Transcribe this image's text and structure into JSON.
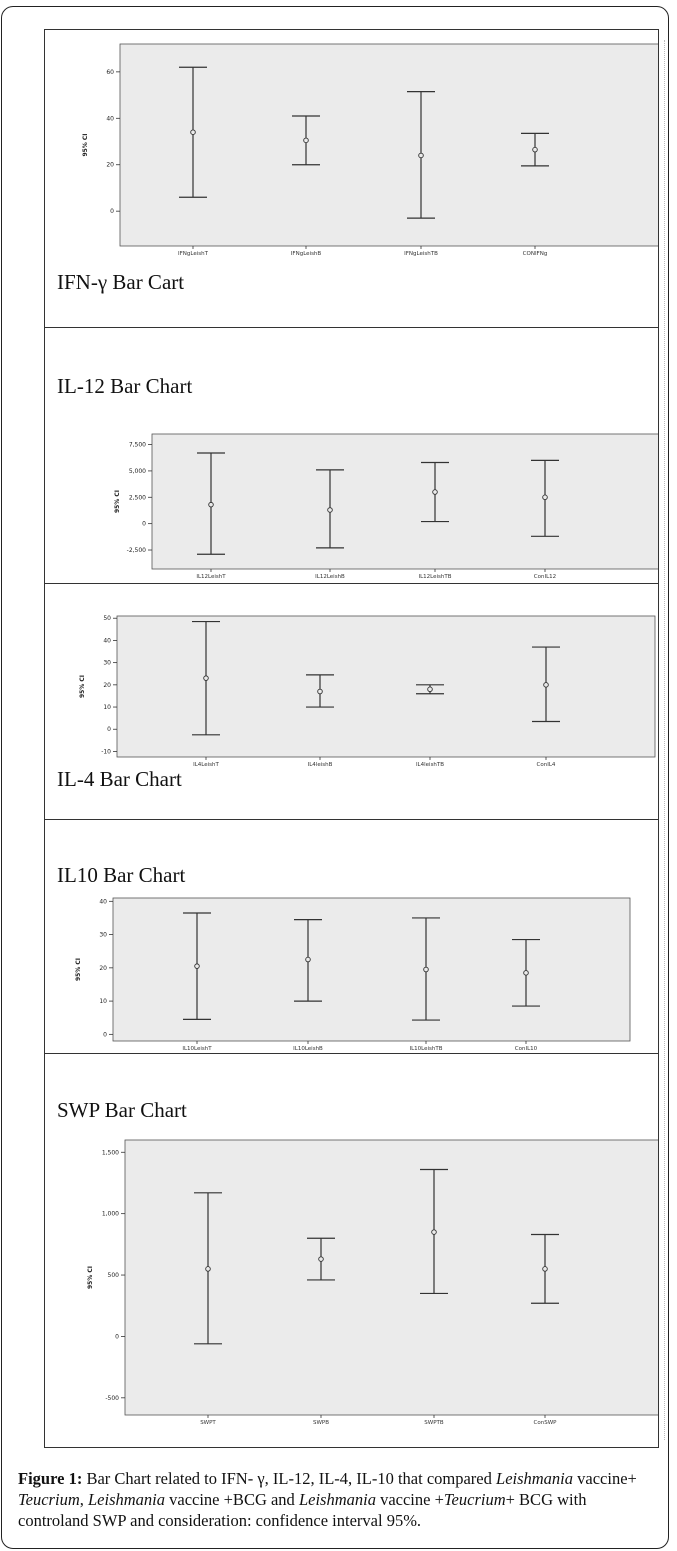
{
  "figure": {
    "panels": [
      {
        "label": "IFN-γ Bar Cart"
      },
      {
        "label": "IL-12 Bar Chart"
      },
      {
        "label": "IL-4 Bar Chart"
      },
      {
        "label": "IL10 Bar Chart"
      },
      {
        "label": "SWP Bar Chart"
      }
    ]
  },
  "caption": {
    "lead": "Figure 1:",
    "t1": " Bar Chart related to IFN- γ, IL-12, IL-4, IL-10 that compared ",
    "i1": "Leishmania",
    "t2": " vaccine+ ",
    "i2": "Teucrium",
    "t3": ", ",
    "i3": "Leishmania",
    "t4": " vaccine +BCG and ",
    "i4": "Leishmania",
    "t5": " vaccine +",
    "i5": "Teucrium",
    "t6": "+ BCG with controland SWP and consideration: confidence interval 95%."
  },
  "chart_data": [
    {
      "type": "errorbar",
      "ylabel": "95% CI",
      "categories": [
        "IFNgLeishT",
        "IFNgLeishB",
        "IFNgLeishTB",
        "CONIFNg"
      ],
      "means": [
        34,
        30.5,
        24,
        26.5
      ],
      "lower": [
        6,
        20,
        -3,
        19.5
      ],
      "upper": [
        62,
        41,
        51.5,
        33.5
      ],
      "yticks": [
        0,
        20,
        40,
        60
      ],
      "ytick_labels": [
        "0",
        "20",
        "40",
        "60"
      ],
      "ylim": [
        -15,
        72
      ]
    },
    {
      "type": "errorbar",
      "ylabel": "95% CI",
      "categories": [
        "IL12LeishT",
        "IL12LeishB",
        "IL12LeishTB",
        "ConIL12"
      ],
      "means": [
        1800,
        1300,
        3000,
        2500
      ],
      "lower": [
        -2900,
        -2300,
        200,
        -1200
      ],
      "upper": [
        6700,
        5100,
        5800,
        6000
      ],
      "yticks": [
        -2500,
        0,
        2500,
        5000,
        7500
      ],
      "ytick_labels": [
        "-2,500",
        "0",
        "2,500",
        "5,000",
        "7,500"
      ],
      "ylim": [
        -4300,
        8500
      ]
    },
    {
      "type": "errorbar",
      "ylabel": "95% CI",
      "categories": [
        "IL4LeishT",
        "IL4leishB",
        "IL4leishTB",
        "ConIL4"
      ],
      "means": [
        23,
        17,
        18,
        20
      ],
      "lower": [
        -2.5,
        10,
        16,
        3.5
      ],
      "upper": [
        48.5,
        24.5,
        20,
        37
      ],
      "yticks": [
        -10,
        0,
        10,
        20,
        30,
        40,
        50
      ],
      "ytick_labels": [
        "-10",
        "0",
        "10",
        "20",
        "30",
        "40",
        "50"
      ],
      "ylim": [
        -12.5,
        51
      ]
    },
    {
      "type": "errorbar",
      "ylabel": "95% CI",
      "categories": [
        "IL10LeishT",
        "IL10LeishB",
        "IL10LeishTB",
        "ConIL10"
      ],
      "means": [
        20.5,
        22.5,
        19.5,
        18.5
      ],
      "lower": [
        4.5,
        10,
        4.3,
        8.5
      ],
      "upper": [
        36.5,
        34.5,
        35,
        28.5
      ],
      "yticks": [
        0,
        10,
        20,
        30,
        40
      ],
      "ytick_labels": [
        "0",
        "10",
        "20",
        "30",
        "40"
      ],
      "ylim": [
        -2,
        41
      ]
    },
    {
      "type": "errorbar",
      "ylabel": "95% CI",
      "categories": [
        "SWPT",
        "SWPB",
        "SWPTB",
        "ConSWP"
      ],
      "means": [
        550,
        630,
        850,
        550
      ],
      "lower": [
        -60,
        460,
        350,
        270
      ],
      "upper": [
        1170,
        800,
        1360,
        830
      ],
      "yticks": [
        -500,
        0,
        500,
        1000,
        1500
      ],
      "ytick_labels": [
        "-500",
        "0",
        "500",
        "1,000",
        "1,500"
      ],
      "ylim": [
        -640,
        1600
      ]
    }
  ]
}
